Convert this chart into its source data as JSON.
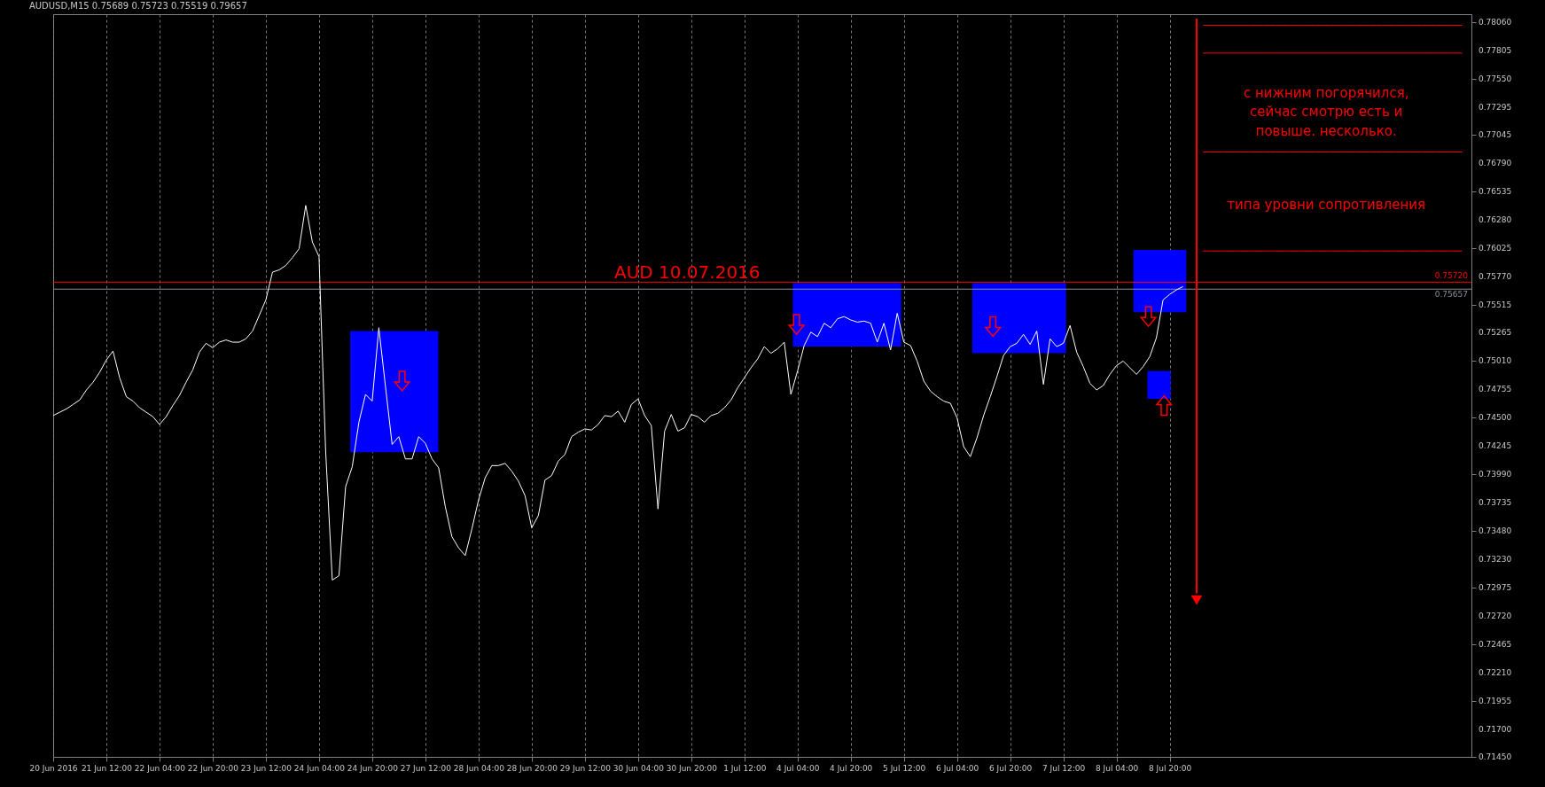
{
  "chart_data": {
    "type": "line",
    "title": "AUDUSD,M15 0.75689 0.75723 0.75519 0.79657",
    "annotations": [
      "AUD 10.07.2016",
      "с нижним погорячился,\nсейчас смотрю есть и\nповыше. несколько.",
      "типа уровни сопротивления"
    ],
    "categories": [
      "20 Jun 2016",
      null,
      null,
      null,
      null,
      null,
      null,
      null,
      "21 Jun 12:00",
      null,
      null,
      null,
      null,
      null,
      null,
      null,
      "22 Jun 04:00",
      null,
      null,
      null,
      null,
      null,
      null,
      null,
      "22 Jun 20:00",
      null,
      null,
      null,
      null,
      null,
      null,
      null,
      "23 Jun 12:00",
      null,
      null,
      null,
      null,
      null,
      null,
      null,
      "24 Jun 04:00",
      null,
      null,
      null,
      null,
      null,
      null,
      null,
      "24 Jun 20:00",
      null,
      null,
      null,
      null,
      null,
      null,
      null,
      "27 Jun 12:00",
      null,
      null,
      null,
      null,
      null,
      null,
      null,
      "28 Jun 04:00",
      null,
      null,
      null,
      null,
      null,
      null,
      null,
      "28 Jun 20:00",
      null,
      null,
      null,
      null,
      null,
      null,
      null,
      "29 Jun 12:00",
      null,
      null,
      null,
      null,
      null,
      null,
      null,
      "30 Jun 04:00",
      null,
      null,
      null,
      null,
      null,
      null,
      null,
      "30 Jun 20:00",
      null,
      null,
      null,
      null,
      null,
      null,
      null,
      "1 Jul 12:00",
      null,
      null,
      null,
      null,
      null,
      null,
      null,
      "4 Jul 04:00",
      null,
      null,
      null,
      null,
      null,
      null,
      null,
      "4 Jul 20:00",
      null,
      null,
      null,
      null,
      null,
      null,
      null,
      "5 Jul 12:00",
      null,
      null,
      null,
      null,
      null,
      null,
      null,
      "6 Jul 04:00",
      null,
      null,
      null,
      null,
      null,
      null,
      null,
      "6 Jul 20:00",
      null,
      null,
      null,
      null,
      null,
      null,
      null,
      "7 Jul 12:00",
      null,
      null,
      null,
      null,
      null,
      null,
      null,
      "8 Jul 04:00",
      null,
      null,
      null,
      null,
      null,
      null,
      null,
      "8 Jul 20:00",
      null,
      null,
      null,
      null,
      null,
      null,
      null,
      null,
      null,
      null,
      null,
      null,
      null,
      null,
      null,
      null,
      null,
      null,
      null,
      null,
      null,
      null,
      null,
      null,
      null,
      null,
      null,
      null,
      null,
      null,
      null,
      null,
      null,
      null,
      null,
      null,
      null,
      null,
      null,
      null,
      null,
      null,
      null,
      null,
      null
    ],
    "ylim": [
      0.7145,
      0.7813
    ],
    "yticks": [
      {
        "value": 0.7145,
        "label": "0.71450"
      },
      {
        "value": 0.717,
        "label": "0.71700"
      },
      {
        "value": 0.71955,
        "label": "0.71955"
      },
      {
        "value": 0.7221,
        "label": "0.72210"
      },
      {
        "value": 0.72465,
        "label": "0.72465"
      },
      {
        "value": 0.7272,
        "label": "0.72720"
      },
      {
        "value": 0.72975,
        "label": "0.72975"
      },
      {
        "value": 0.7323,
        "label": "0.73230"
      },
      {
        "value": 0.7348,
        "label": "0.73480"
      },
      {
        "value": 0.73735,
        "label": "0.73735"
      },
      {
        "value": 0.7399,
        "label": "0.73990"
      },
      {
        "value": 0.74245,
        "label": "0.74245"
      },
      {
        "value": 0.745,
        "label": "0.74500"
      },
      {
        "value": 0.74755,
        "label": "0.74755"
      },
      {
        "value": 0.7501,
        "label": "0.75010"
      },
      {
        "value": 0.75265,
        "label": "0.75265"
      },
      {
        "value": 0.75515,
        "label": "0.75515"
      },
      {
        "value": 0.7577,
        "label": "0.75770"
      },
      {
        "value": 0.76025,
        "label": "0.76025"
      },
      {
        "value": 0.7628,
        "label": "0.76280"
      },
      {
        "value": 0.76535,
        "label": "0.76535"
      },
      {
        "value": 0.7679,
        "label": "0.76790"
      },
      {
        "value": 0.77045,
        "label": "0.77045"
      },
      {
        "value": 0.77295,
        "label": "0.77295"
      },
      {
        "value": 0.7755,
        "label": "0.77550"
      },
      {
        "value": 0.77805,
        "label": "0.77805"
      },
      {
        "value": 0.7806,
        "label": "0.78060"
      }
    ],
    "grid": "x",
    "ref_lines": [
      {
        "axis": "y",
        "value": 0.7572,
        "label": "0.75720",
        "color": "#ff0000"
      },
      {
        "axis": "y",
        "value": 0.75657,
        "label": "0.75657",
        "color": "#8a8f99"
      }
    ],
    "series": [
      {
        "color": "#ffffff",
        "values": [
          0.7452,
          0.7455,
          0.7458,
          0.7462,
          0.7466,
          0.7475,
          0.7482,
          0.7491,
          0.7502,
          0.751,
          0.7486,
          0.7469,
          0.7465,
          0.7459,
          0.7455,
          0.7451,
          0.7444,
          0.7451,
          0.7461,
          0.747,
          0.7482,
          0.7493,
          0.7509,
          0.7517,
          0.7513,
          0.7518,
          0.752,
          0.7518,
          0.7518,
          0.7521,
          0.7528,
          0.7542,
          0.7556,
          0.7581,
          0.7583,
          0.7587,
          0.7594,
          0.7602,
          0.7641,
          0.7608,
          0.7595,
          0.742,
          0.7304,
          0.7308,
          0.7388,
          0.7406,
          0.7446,
          0.7471,
          0.7465,
          0.7531,
          0.7478,
          0.7426,
          0.7433,
          0.7413,
          0.7413,
          0.7433,
          0.7427,
          0.7413,
          0.7405,
          0.737,
          0.7343,
          0.7333,
          0.7326,
          0.735,
          0.7376,
          0.7396,
          0.7407,
          0.7407,
          0.7409,
          0.7402,
          0.7393,
          0.738,
          0.7351,
          0.7362,
          0.7394,
          0.7398,
          0.7411,
          0.7417,
          0.7433,
          0.7437,
          0.744,
          0.7439,
          0.7444,
          0.7452,
          0.7451,
          0.7456,
          0.7446,
          0.7462,
          0.7467,
          0.7452,
          0.7443,
          0.7368,
          0.7438,
          0.7453,
          0.7438,
          0.7441,
          0.7453,
          0.7451,
          0.7446,
          0.7452,
          0.7454,
          0.7459,
          0.7466,
          0.7477,
          0.7486,
          0.7495,
          0.7503,
          0.7514,
          0.7508,
          0.7512,
          0.7518,
          0.7471,
          0.7492,
          0.7515,
          0.7527,
          0.7523,
          0.7535,
          0.7531,
          0.7539,
          0.7541,
          0.7538,
          0.7536,
          0.7537,
          0.7535,
          0.7518,
          0.7535,
          0.7511,
          0.7544,
          0.7518,
          0.7515,
          0.7501,
          0.7483,
          0.7474,
          0.7469,
          0.7465,
          0.7463,
          0.745,
          0.7424,
          0.7415,
          0.7432,
          0.7452,
          0.7469,
          0.7487,
          0.7506,
          0.7514,
          0.7517,
          0.7525,
          0.7516,
          0.7528,
          0.748,
          0.7521,
          0.7514,
          0.7517,
          0.7533,
          0.7509,
          0.7496,
          0.7481,
          0.7475,
          0.7479,
          0.7489,
          0.7497,
          0.7501,
          0.7495,
          0.7489,
          0.7496,
          0.7505,
          0.7522,
          0.7556,
          0.7561,
          0.7565,
          0.7568,
          null,
          null,
          null,
          null,
          null,
          null,
          null,
          null,
          null,
          null,
          null,
          null,
          null,
          null,
          null,
          null,
          null,
          null,
          null,
          null,
          null,
          null,
          null,
          null,
          null,
          null,
          null,
          null,
          null,
          null,
          null,
          null,
          null,
          null,
          null,
          null,
          null,
          null,
          null,
          null,
          null,
          null,
          null
        ]
      },
      {
        "color": "#ff0000",
        "values": [
          null,
          null,
          null,
          null,
          null,
          null,
          null,
          null,
          null,
          null,
          null,
          null,
          null,
          null,
          null,
          null,
          null,
          null,
          null,
          null,
          null,
          null,
          null,
          null,
          null,
          null,
          null,
          null,
          null,
          null,
          null,
          null,
          null,
          null,
          null,
          null,
          null,
          null,
          null,
          null,
          null,
          null,
          null,
          null,
          null,
          null,
          null,
          null,
          null,
          null,
          null,
          null,
          null,
          null,
          null,
          null,
          null,
          null,
          null,
          null,
          null,
          null,
          null,
          null,
          null,
          null,
          null,
          null,
          null,
          null,
          null,
          null,
          null,
          null,
          null,
          null,
          null,
          null,
          null,
          null,
          null,
          null,
          null,
          null,
          null,
          null,
          null,
          null,
          null,
          null,
          null,
          null,
          null,
          null,
          null,
          null,
          null,
          null,
          null,
          null,
          null,
          null,
          null,
          null,
          null,
          null,
          null,
          null,
          null,
          null,
          null,
          null,
          null,
          null,
          null,
          null,
          null,
          null,
          null,
          null,
          null,
          null,
          null,
          null,
          null,
          null,
          null,
          null,
          null,
          null,
          null,
          null,
          null,
          null,
          null,
          null,
          null,
          null,
          null,
          null,
          null,
          null,
          null,
          null,
          null,
          null,
          null,
          null,
          null,
          null,
          null,
          null,
          null,
          null,
          null,
          null,
          null,
          null,
          null,
          null,
          null,
          null,
          null,
          null,
          null,
          null,
          null,
          null,
          null,
          null,
          null,
          null,
          null,
          0.7803,
          0.7803,
          0.7803,
          0.7803,
          0.7803,
          0.7803,
          0.7803,
          0.7803,
          0.7803,
          0.7803,
          0.7803,
          0.7803,
          0.7803,
          0.7803,
          0.7803,
          0.7803,
          0.7803,
          0.7803,
          0.7803,
          0.7803,
          0.7803,
          0.7803,
          0.7803,
          0.7803,
          0.7803,
          0.7803,
          0.7803,
          0.7803,
          0.7803,
          0.7803,
          0.7803,
          0.7803,
          0.7803,
          0.7803,
          0.7803,
          0.7803,
          0.7803,
          0.7803,
          0.7803,
          0.7803,
          null
        ]
      },
      {
        "color": "#ff0000",
        "values": [
          null,
          null,
          null,
          null,
          null,
          null,
          null,
          null,
          null,
          null,
          null,
          null,
          null,
          null,
          null,
          null,
          null,
          null,
          null,
          null,
          null,
          null,
          null,
          null,
          null,
          null,
          null,
          null,
          null,
          null,
          null,
          null,
          null,
          null,
          null,
          null,
          null,
          null,
          null,
          null,
          null,
          null,
          null,
          null,
          null,
          null,
          null,
          null,
          null,
          null,
          null,
          null,
          null,
          null,
          null,
          null,
          null,
          null,
          null,
          null,
          null,
          null,
          null,
          null,
          null,
          null,
          null,
          null,
          null,
          null,
          null,
          null,
          null,
          null,
          null,
          null,
          null,
          null,
          null,
          null,
          null,
          null,
          null,
          null,
          null,
          null,
          null,
          null,
          null,
          null,
          null,
          null,
          null,
          null,
          null,
          null,
          null,
          null,
          null,
          null,
          null,
          null,
          null,
          null,
          null,
          null,
          null,
          null,
          null,
          null,
          null,
          null,
          null,
          null,
          null,
          null,
          null,
          null,
          null,
          null,
          null,
          null,
          null,
          null,
          null,
          null,
          null,
          null,
          null,
          null,
          null,
          null,
          null,
          null,
          null,
          null,
          null,
          null,
          null,
          null,
          null,
          null,
          null,
          null,
          null,
          null,
          null,
          null,
          null,
          null,
          null,
          null,
          null,
          null,
          null,
          null,
          null,
          null,
          null,
          null,
          null,
          null,
          null,
          null,
          null,
          null,
          null,
          null,
          null,
          null,
          null,
          null,
          null,
          0.7778,
          0.7778,
          0.7778,
          0.7778,
          0.7778,
          0.7778,
          0.7778,
          0.7778,
          0.7778,
          0.7778,
          0.7778,
          0.7778,
          0.7778,
          0.7778,
          0.7778,
          0.7778,
          0.7778,
          0.7778,
          0.7778,
          0.7778,
          0.7778,
          0.7778,
          0.7778,
          0.7778,
          0.7778,
          0.7778,
          0.7778,
          0.7778,
          0.7778,
          0.7778,
          0.7778,
          0.7778,
          0.7778,
          0.7778,
          0.7778,
          0.7778,
          0.7778,
          0.7778,
          0.7778,
          0.7778,
          null
        ]
      },
      {
        "color": "#ff0000",
        "values": [
          null,
          null,
          null,
          null,
          null,
          null,
          null,
          null,
          null,
          null,
          null,
          null,
          null,
          null,
          null,
          null,
          null,
          null,
          null,
          null,
          null,
          null,
          null,
          null,
          null,
          null,
          null,
          null,
          null,
          null,
          null,
          null,
          null,
          null,
          null,
          null,
          null,
          null,
          null,
          null,
          null,
          null,
          null,
          null,
          null,
          null,
          null,
          null,
          null,
          null,
          null,
          null,
          null,
          null,
          null,
          null,
          null,
          null,
          null,
          null,
          null,
          null,
          null,
          null,
          null,
          null,
          null,
          null,
          null,
          null,
          null,
          null,
          null,
          null,
          null,
          null,
          null,
          null,
          null,
          null,
          null,
          null,
          null,
          null,
          null,
          null,
          null,
          null,
          null,
          null,
          null,
          null,
          null,
          null,
          null,
          null,
          null,
          null,
          null,
          null,
          null,
          null,
          null,
          null,
          null,
          null,
          null,
          null,
          null,
          null,
          null,
          null,
          null,
          null,
          null,
          null,
          null,
          null,
          null,
          null,
          null,
          null,
          null,
          null,
          null,
          null,
          null,
          null,
          null,
          null,
          null,
          null,
          null,
          null,
          null,
          null,
          null,
          null,
          null,
          null,
          null,
          null,
          null,
          null,
          null,
          null,
          null,
          null,
          null,
          null,
          null,
          null,
          null,
          null,
          null,
          null,
          null,
          null,
          null,
          null,
          null,
          null,
          null,
          null,
          null,
          null,
          null,
          null,
          null,
          null,
          null,
          null,
          null,
          0.7689,
          0.7689,
          0.7689,
          0.7689,
          0.7689,
          0.7689,
          0.7689,
          0.7689,
          0.7689,
          0.7689,
          0.7689,
          0.7689,
          0.7689,
          0.7689,
          0.7689,
          0.7689,
          0.7689,
          0.7689,
          0.7689,
          0.7689,
          0.7689,
          0.7689,
          0.7689,
          0.7689,
          0.7689,
          0.7689,
          0.7689,
          0.7689,
          0.7689,
          0.7689,
          0.7689,
          0.7689,
          0.7689,
          0.7689,
          0.7689,
          0.7689,
          0.7689,
          0.7689,
          0.7689,
          0.7689,
          null
        ]
      },
      {
        "color": "#ff0000",
        "values": [
          null,
          null,
          null,
          null,
          null,
          null,
          null,
          null,
          null,
          null,
          null,
          null,
          null,
          null,
          null,
          null,
          null,
          null,
          null,
          null,
          null,
          null,
          null,
          null,
          null,
          null,
          null,
          null,
          null,
          null,
          null,
          null,
          null,
          null,
          null,
          null,
          null,
          null,
          null,
          null,
          null,
          null,
          null,
          null,
          null,
          null,
          null,
          null,
          null,
          null,
          null,
          null,
          null,
          null,
          null,
          null,
          null,
          null,
          null,
          null,
          null,
          null,
          null,
          null,
          null,
          null,
          null,
          null,
          null,
          null,
          null,
          null,
          null,
          null,
          null,
          null,
          null,
          null,
          null,
          null,
          null,
          null,
          null,
          null,
          null,
          null,
          null,
          null,
          null,
          null,
          null,
          null,
          null,
          null,
          null,
          null,
          null,
          null,
          null,
          null,
          null,
          null,
          null,
          null,
          null,
          null,
          null,
          null,
          null,
          null,
          null,
          null,
          null,
          null,
          null,
          null,
          null,
          null,
          null,
          null,
          null,
          null,
          null,
          null,
          null,
          null,
          null,
          null,
          null,
          null,
          null,
          null,
          null,
          null,
          null,
          null,
          null,
          null,
          null,
          null,
          null,
          null,
          null,
          null,
          null,
          null,
          null,
          null,
          null,
          null,
          null,
          null,
          null,
          null,
          null,
          null,
          null,
          null,
          null,
          null,
          null,
          null,
          null,
          null,
          null,
          null,
          null,
          null,
          null,
          null,
          null,
          null,
          null,
          0.76,
          0.76,
          0.76,
          0.76,
          0.76,
          0.76,
          0.76,
          0.76,
          0.76,
          0.76,
          0.76,
          0.76,
          0.76,
          0.76,
          0.76,
          0.76,
          0.76,
          0.76,
          0.76,
          0.76,
          0.76,
          0.76,
          0.76,
          0.76,
          0.76,
          0.76,
          0.76,
          0.76,
          0.76,
          0.76,
          0.76,
          0.76,
          0.76,
          0.76,
          0.76,
          0.76,
          0.76,
          0.76,
          0.76,
          0.76,
          null
        ]
      }
    ]
  }
}
